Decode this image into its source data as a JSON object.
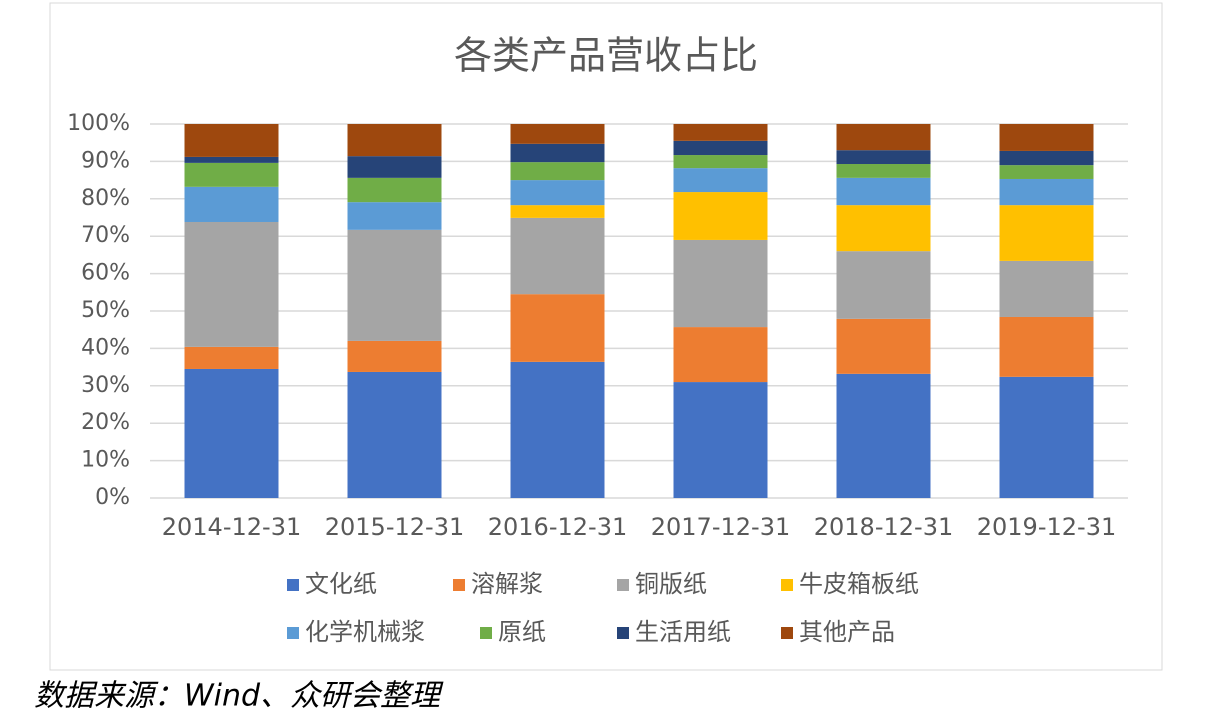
{
  "chart_data": {
    "type": "stacked_bar",
    "title": "各类产品营收占比",
    "categories": [
      "2014-12-31",
      "2015-12-31",
      "2016-12-31",
      "2017-12-31",
      "2018-12-31",
      "2019-12-31"
    ],
    "series": [
      {
        "name": "文化纸",
        "color": "#4472c4",
        "values": [
          34.5,
          33.7,
          36.4,
          31.0,
          33.2,
          32.4
        ]
      },
      {
        "name": "溶解浆",
        "color": "#ed7d31",
        "values": [
          5.9,
          8.3,
          18.1,
          14.7,
          14.7,
          16.0
        ]
      },
      {
        "name": "铜版纸",
        "color": "#a5a5a5",
        "values": [
          33.4,
          29.7,
          20.4,
          23.3,
          18.1,
          15.0
        ]
      },
      {
        "name": "牛皮箱板纸",
        "color": "#ffc000",
        "values": [
          0,
          0,
          3.4,
          12.8,
          12.3,
          14.9
        ]
      },
      {
        "name": "化学机械浆",
        "color": "#5b9bd5",
        "values": [
          9.4,
          7.4,
          6.7,
          6.4,
          7.3,
          7.0
        ]
      },
      {
        "name": "原纸",
        "color": "#70ad47",
        "values": [
          6.4,
          6.5,
          4.8,
          3.5,
          3.7,
          3.7
        ]
      },
      {
        "name": "生活用纸",
        "color": "#264478",
        "values": [
          1.6,
          5.8,
          4.9,
          3.8,
          3.7,
          3.8
        ]
      },
      {
        "name": "其他产品",
        "color": "#9e480e",
        "values": [
          8.8,
          8.6,
          5.3,
          4.5,
          7.0,
          7.2
        ]
      }
    ],
    "ylim": [
      0,
      100
    ],
    "yticks": [
      {
        "value": 0,
        "label": "0%"
      },
      {
        "value": 10,
        "label": "10%"
      },
      {
        "value": 20,
        "label": "20%"
      },
      {
        "value": 30,
        "label": "30%"
      },
      {
        "value": 40,
        "label": "40%"
      },
      {
        "value": 50,
        "label": "50%"
      },
      {
        "value": 60,
        "label": "60%"
      },
      {
        "value": 70,
        "label": "70%"
      },
      {
        "value": 80,
        "label": "80%"
      },
      {
        "value": 90,
        "label": "90%"
      },
      {
        "value": 100,
        "label": "100%"
      }
    ],
    "grid": true,
    "legend": "bottom",
    "source": "数据来源：Wind、众研会整理"
  }
}
